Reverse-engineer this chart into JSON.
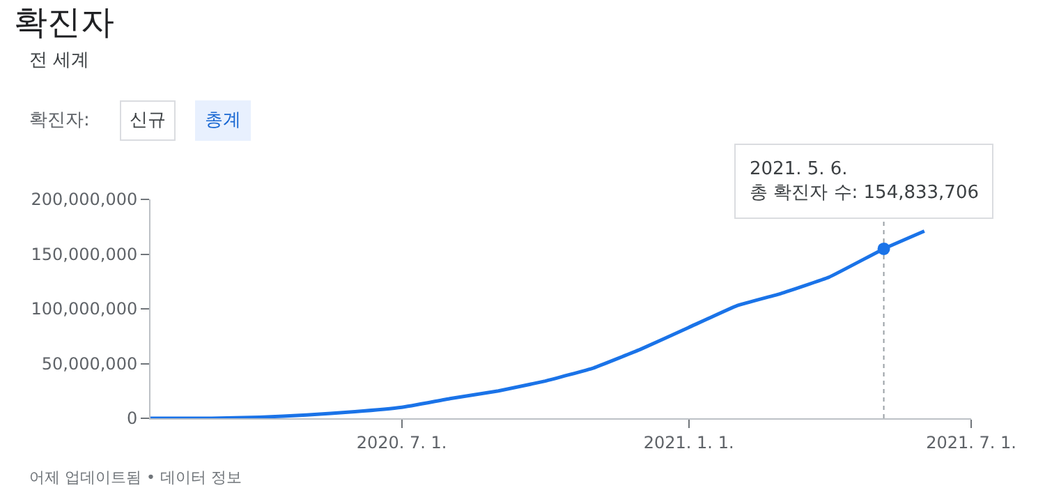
{
  "chart_data": {
    "type": "line",
    "title": "확진자",
    "subtitle": "전 세계",
    "annotations": [
      "확진자:",
      "신규",
      "총계",
      {
        "text": "2021. 5. 6.\n총 확진자 수: 154,833,706",
        "x": "2021-05-06",
        "y": 154833706
      },
      "어제 업데이트됨 • 데이터 정보"
    ],
    "x": [
      "2020-01-22",
      "2020-03-01",
      "2020-04-01",
      "2020-05-01",
      "2020-06-01",
      "2020-07-01",
      "2020-08-01",
      "2020-09-01",
      "2020-10-01",
      "2020-11-01",
      "2020-12-01",
      "2021-01-01",
      "2021-02-01",
      "2021-03-01",
      "2021-04-01",
      "2021-05-06",
      "2021-06-01"
    ],
    "series": [
      {
        "color": "#1a73e8",
        "values": [
          0,
          0,
          1000000,
          3000000,
          6000000,
          10000000,
          18000000,
          25000000,
          34000000,
          46000000,
          63000000,
          83000000,
          103000000,
          114000000,
          129000000,
          154833706,
          171000000
        ]
      }
    ],
    "xlim": [
      "2020-01-22",
      "2021-07-01"
    ],
    "xticks": [
      {
        "value": "2020-07-01",
        "label": "2020. 7. 1."
      },
      {
        "value": "2021-01-01",
        "label": "2021. 1. 1."
      },
      {
        "value": "2021-07-01",
        "label": "2021. 7. 1."
      }
    ],
    "ylim": [
      0,
      200000000
    ],
    "yticks": [
      0,
      {
        "value": 50000000,
        "label": "50,000,000"
      },
      {
        "value": 100000000,
        "label": "100,000,000"
      },
      {
        "value": 150000000,
        "label": "150,000,000"
      },
      {
        "value": 200000000,
        "label": "200,000,000"
      }
    ],
    "ref_lines": [
      {
        "axis": "x",
        "value": "2021-05-06",
        "color": "#9aa0a6",
        "line_style": "dotted"
      }
    ],
    "marker": "none",
    "line_style": "solid"
  }
}
